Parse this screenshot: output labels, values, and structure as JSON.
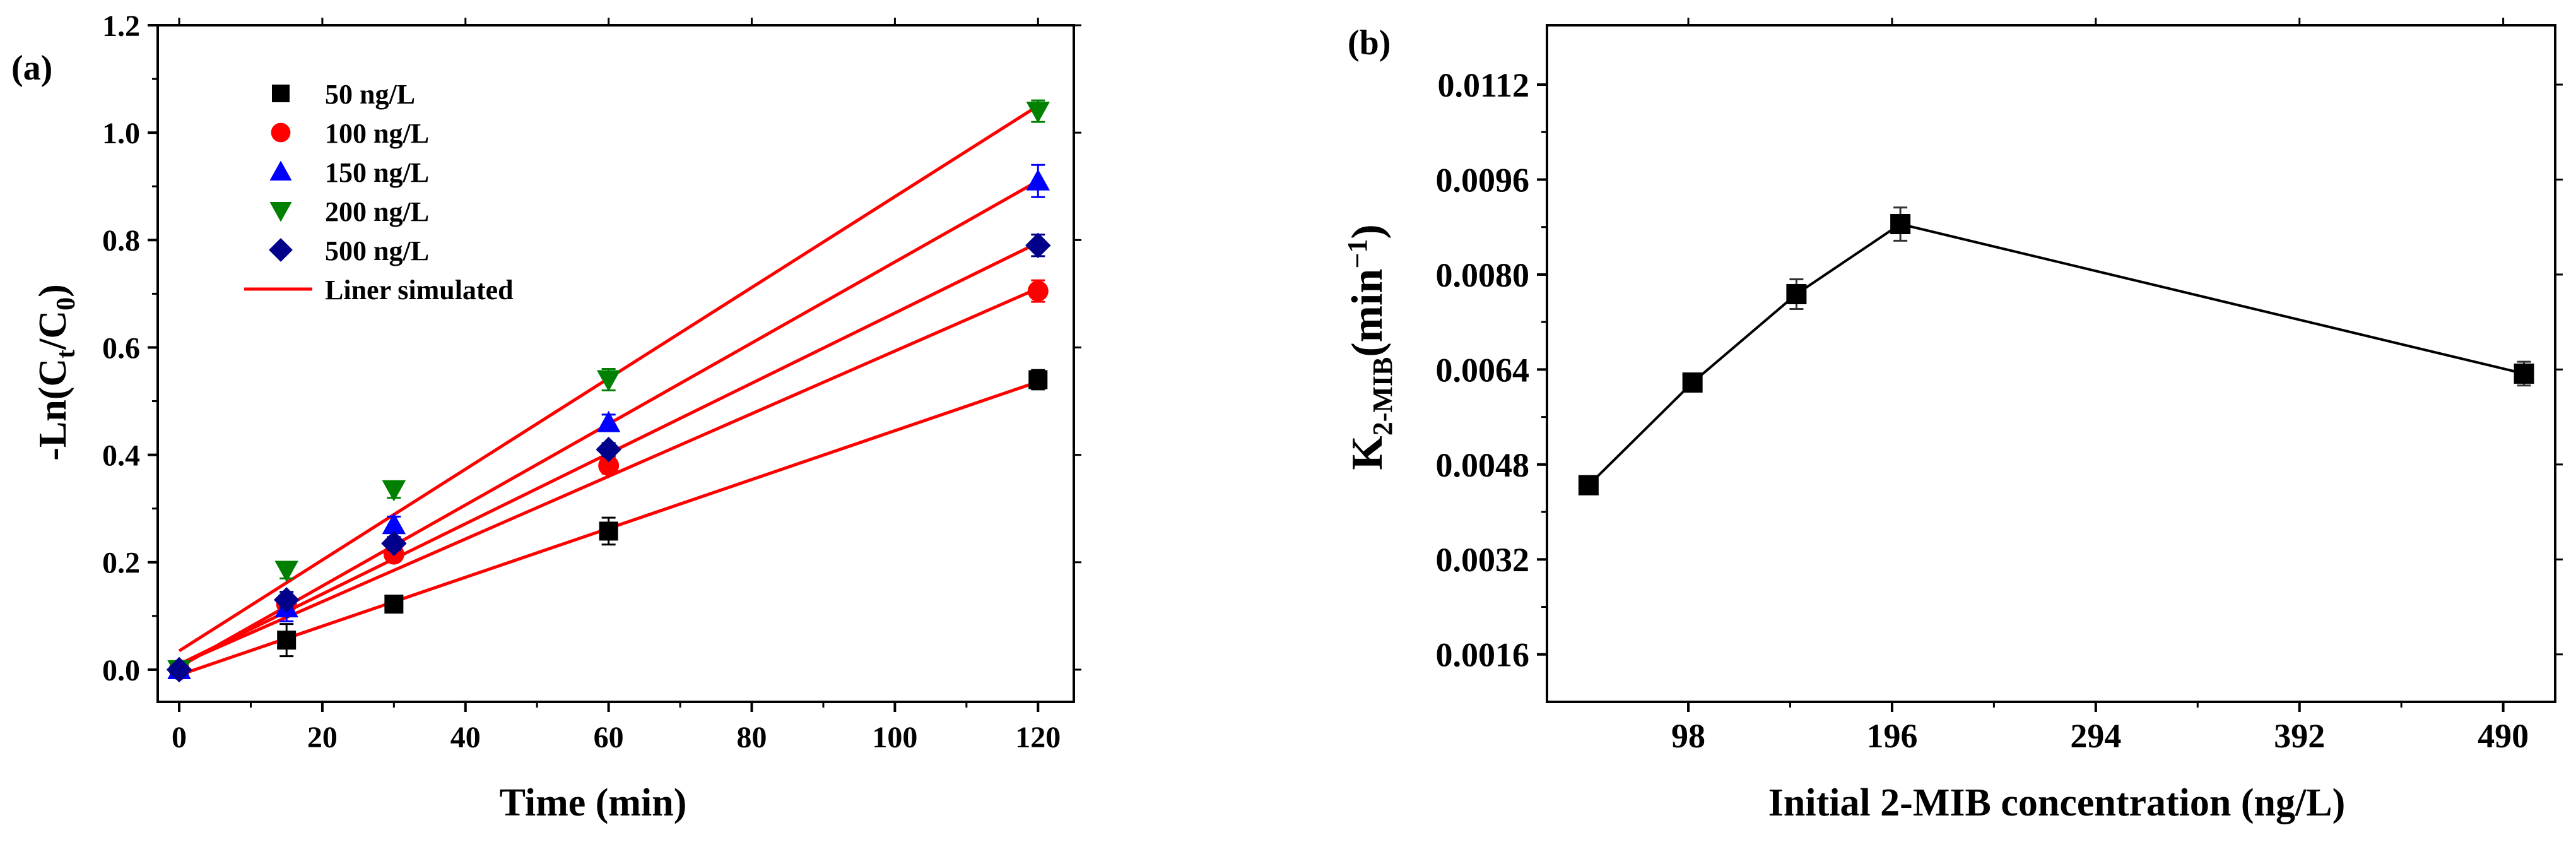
{
  "chart_data": [
    {
      "panel_label": "(a)",
      "type": "scatter",
      "xlabel": "Time (min)",
      "ylabel_parts": [
        "-Ln(C",
        "t",
        "/C",
        "0",
        ")"
      ],
      "xlim": [
        -3,
        125
      ],
      "ylim": [
        -0.06,
        1.2
      ],
      "xticks": [
        0,
        20,
        40,
        60,
        80,
        100,
        120
      ],
      "xtick_labels": [
        "0",
        "20",
        "40",
        "60",
        "80",
        "100",
        "120"
      ],
      "yticks": [
        0.0,
        0.2,
        0.4,
        0.6,
        0.8,
        1.0,
        1.2
      ],
      "ytick_labels": [
        "0.0",
        "0.2",
        "0.4",
        "0.6",
        "0.8",
        "1.0",
        "1.2"
      ],
      "legend_position": "top-left",
      "x": [
        0,
        15,
        30,
        60,
        120
      ],
      "series": [
        {
          "name": "50 ng/L",
          "marker": "square",
          "color": "#000000",
          "values": [
            0.0,
            0.055,
            0.122,
            0.258,
            0.54
          ],
          "errors": [
            0.01,
            0.03,
            0.015,
            0.025,
            0.018
          ],
          "fit": [
            -0.01,
            0.536
          ]
        },
        {
          "name": "100 ng/L",
          "marker": "circle",
          "color": "#ff0000",
          "values": [
            0.0,
            0.122,
            0.215,
            0.38,
            0.705
          ],
          "errors": [
            0.01,
            0.012,
            0.012,
            0.015,
            0.02
          ],
          "fit": [
            0.01,
            0.71
          ]
        },
        {
          "name": "150 ng/L",
          "marker": "triangle-up",
          "color": "#0000ff",
          "values": [
            0.0,
            0.115,
            0.27,
            0.46,
            0.91
          ],
          "errors": [
            0.01,
            0.025,
            0.015,
            0.015,
            0.03
          ],
          "fit": [
            0.005,
            0.91
          ]
        },
        {
          "name": "200 ng/L",
          "marker": "triangle-down",
          "color": "#008000",
          "values": [
            0.0,
            0.185,
            0.335,
            0.54,
            1.04
          ],
          "errors": [
            0.01,
            0.015,
            0.015,
            0.02,
            0.02
          ],
          "fit": [
            0.035,
            1.05
          ]
        },
        {
          "name": "500 ng/L",
          "marker": "diamond",
          "color": "#00008b",
          "values": [
            0.0,
            0.13,
            0.235,
            0.41,
            0.79
          ],
          "errors": [
            0.01,
            0.015,
            0.012,
            0.012,
            0.02
          ],
          "fit": [
            0.01,
            0.795
          ]
        }
      ],
      "fit_legend": {
        "name": "Liner simulated",
        "color": "#ff0000"
      }
    },
    {
      "panel_label": "(b)",
      "type": "line",
      "xlabel": "Initial 2-MIB concentration (ng/L)",
      "ylabel_parts": [
        "K",
        "2-MIB",
        "(min",
        "−1",
        ")"
      ],
      "xlim": [
        30,
        515
      ],
      "ylim": [
        0.0008,
        0.0122
      ],
      "xticks": [
        98,
        196,
        294,
        392,
        490
      ],
      "xtick_labels": [
        "98",
        "196",
        "294",
        "392",
        "490"
      ],
      "yticks": [
        0.0016,
        0.0032,
        0.0048,
        0.0064,
        0.008,
        0.0096,
        0.0112
      ],
      "ytick_labels": [
        "0.0016",
        "0.0032",
        "0.0048",
        "0.0064",
        "0.0080",
        "0.0096",
        "0.0112"
      ],
      "marker": "square",
      "color": "#000000",
      "x": [
        50,
        100,
        150,
        200,
        500
      ],
      "values": [
        0.00445,
        0.00618,
        0.00767,
        0.00885,
        0.00633
      ],
      "errors": [
        0.00015,
        0.00012,
        0.00025,
        0.00028,
        0.0002
      ]
    }
  ]
}
